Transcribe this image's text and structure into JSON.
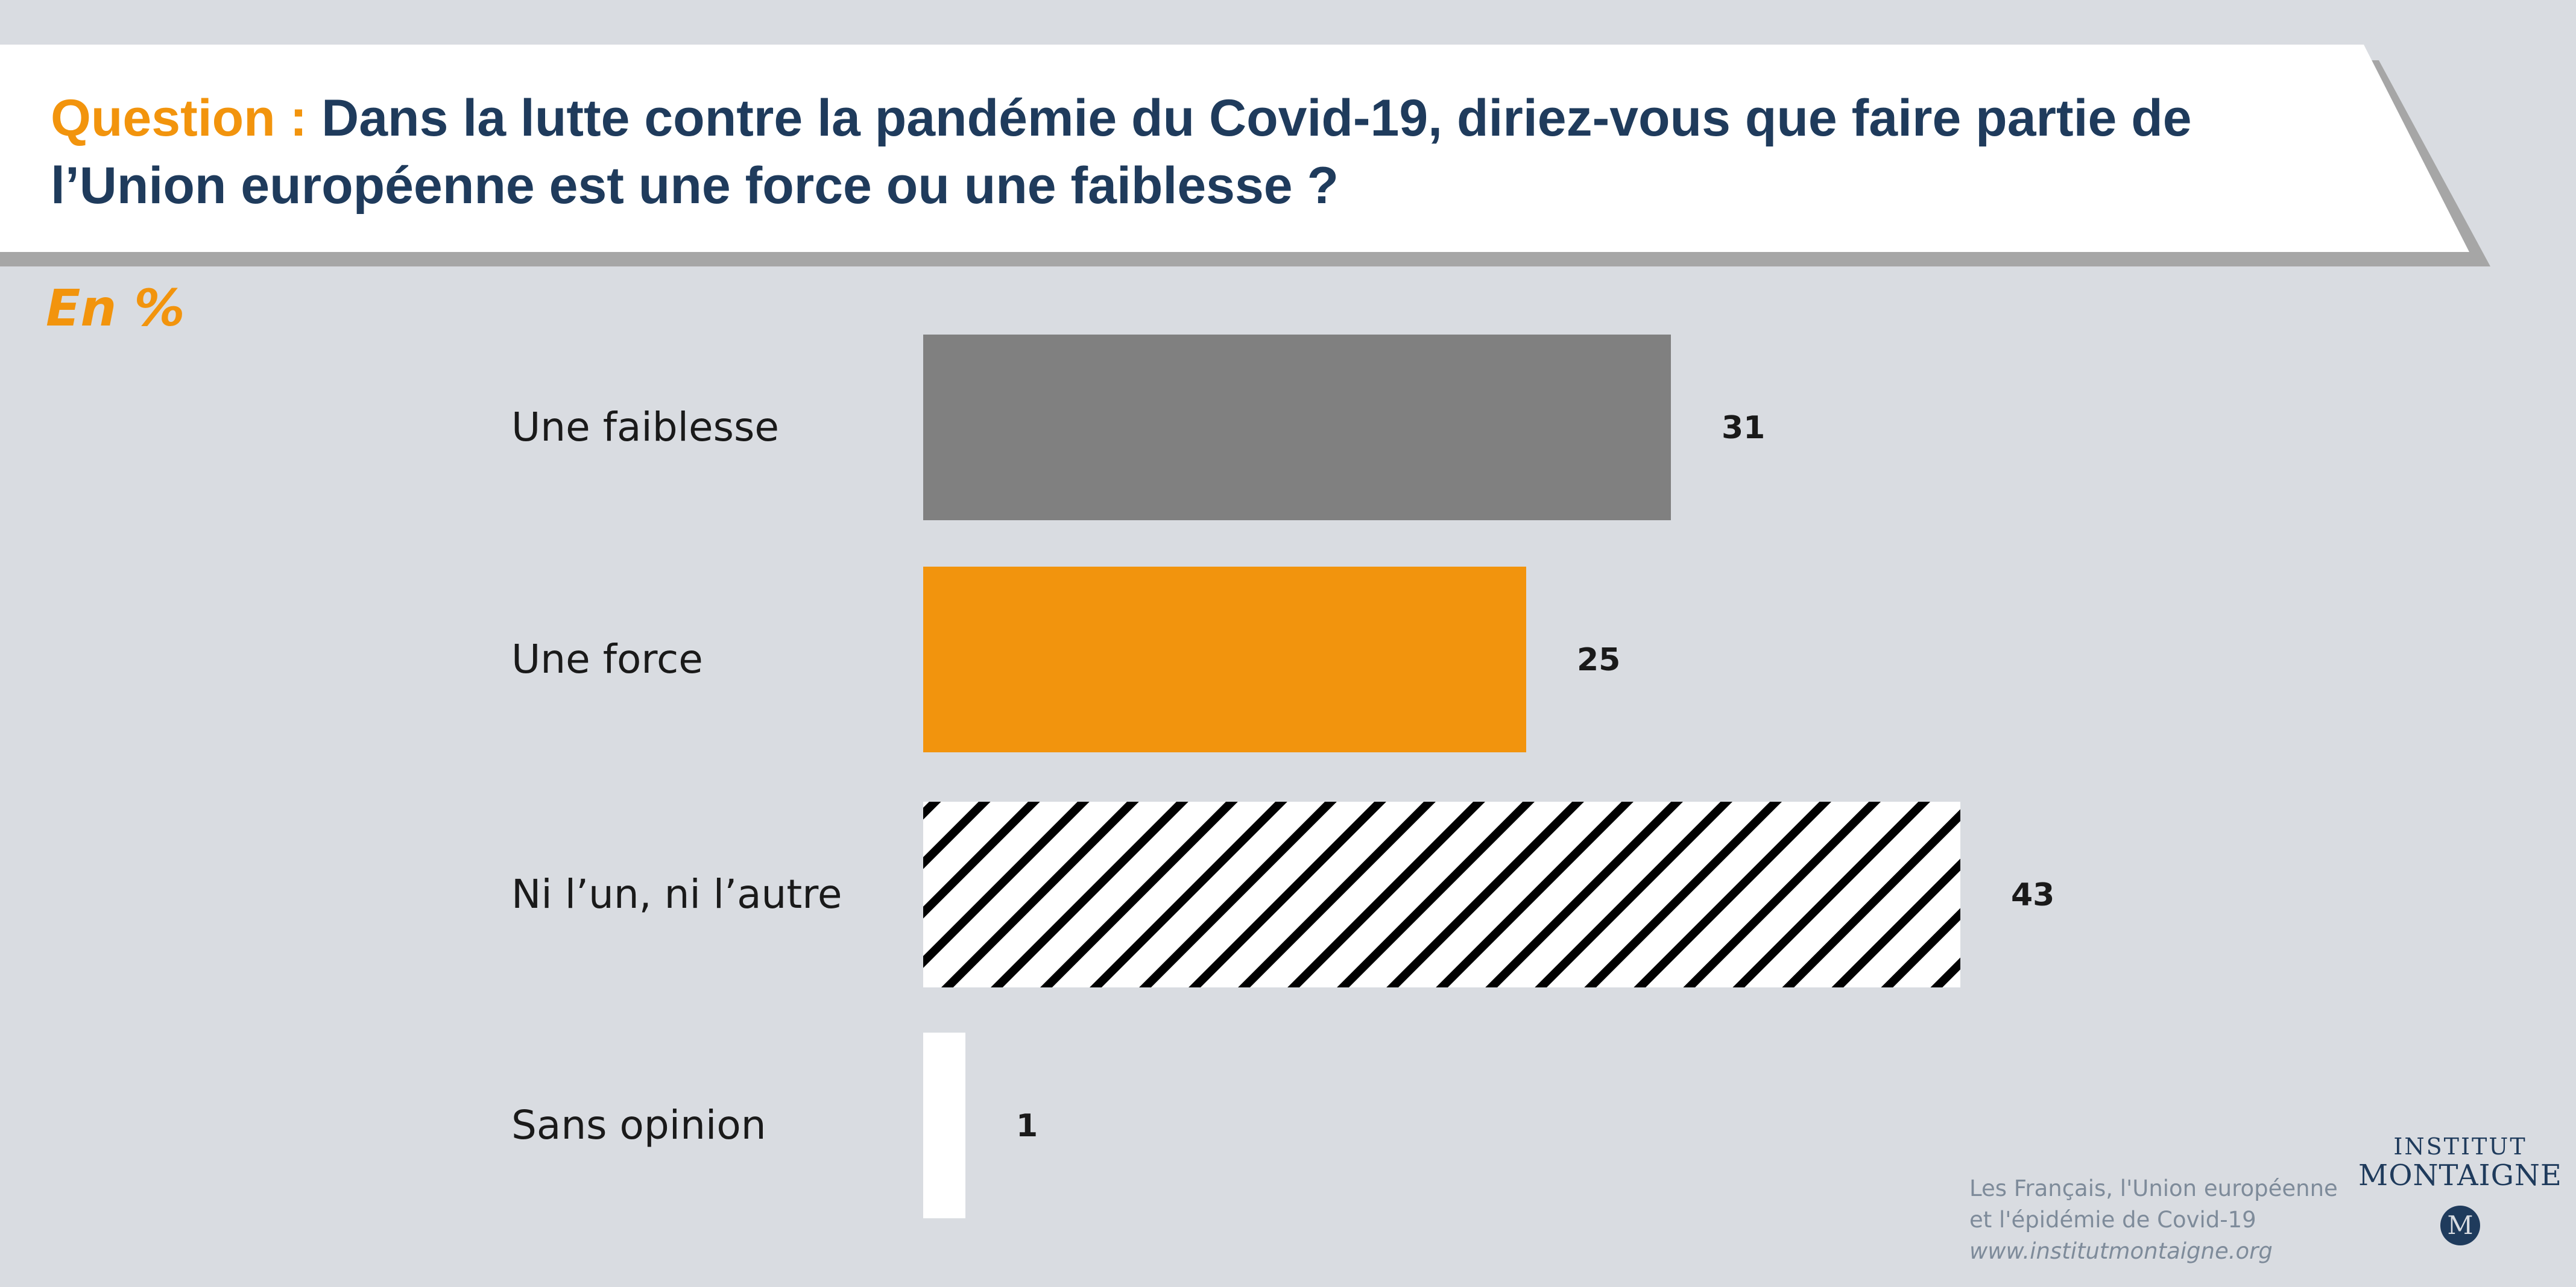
{
  "header": {
    "question_label": "Question :",
    "question_text": "Dans la lutte contre la pandémie du Covid-19, diriez-vous que faire partie de l’Union européenne est une force ou une faiblesse ?"
  },
  "unit_label": "En %",
  "chart_data": {
    "type": "bar",
    "orientation": "horizontal",
    "title": "",
    "xlabel": "",
    "ylabel": "",
    "categories": [
      "Une faiblesse",
      "Une force",
      "Ni l’un, ni l’autre",
      "Sans opinion"
    ],
    "values": [
      31,
      25,
      43,
      1
    ],
    "value_labels": [
      "31",
      "25",
      "43",
      "1"
    ],
    "bar_styles": [
      "solid-gray",
      "solid-orange",
      "hatched",
      "solid-white"
    ],
    "colors": [
      "#808080",
      "#f2940d",
      "#ffffff",
      "#ffffff"
    ],
    "hatch_color": "#000000",
    "xlim": [
      0,
      100
    ],
    "grid": false,
    "legend": "none"
  },
  "source": {
    "line1": "Les Français, l'Union européenne",
    "line2": "et l'épidémie de Covid-19",
    "url": "www.institutmontaigne.org"
  },
  "logo": {
    "line1": "INSTITUT",
    "line2": "MONTAIGNE",
    "mark": "M"
  },
  "colors": {
    "background": "#d9dce1",
    "accent": "#f2940d",
    "title": "#1f3b5c"
  }
}
